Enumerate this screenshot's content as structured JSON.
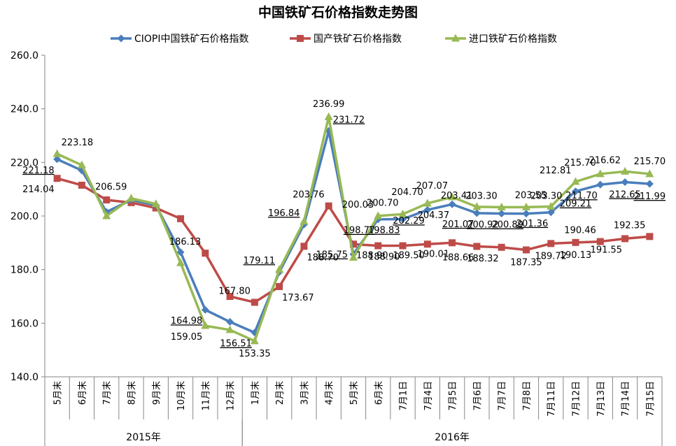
{
  "chart_data": {
    "type": "line",
    "title": "中国铁矿石价格指数走势图",
    "ylim": [
      140,
      260
    ],
    "yticks": [
      "140.0",
      "160.0",
      "180.0",
      "200.0",
      "220.0",
      "240.0",
      "260.0"
    ],
    "grid": false,
    "legend_position": "top",
    "categories": [
      "5月末",
      "6月末",
      "7月末",
      "8月末",
      "9月末",
      "10月末",
      "11月末",
      "12月末",
      "1月末",
      "2月末",
      "3月末",
      "4月末",
      "5月末",
      "6月末",
      "7月1日",
      "7月4日",
      "7月5日",
      "7月6日",
      "7月7日",
      "7月8日",
      "7月11日",
      "7月12日",
      "7月13日",
      "7月14日",
      "7月15日"
    ],
    "groups": [
      {
        "label": "2015年",
        "start": 0,
        "end": 7
      },
      {
        "label": "2016年",
        "start": 8,
        "end": 24
      }
    ],
    "series": [
      {
        "name": "CIOPI中国铁矿石价格指数",
        "color": "#4a7ebb",
        "marker": "diamond",
        "values": [
          221.18,
          217.0,
          201.5,
          206.0,
          204.0,
          186.5,
          164.98,
          160.5,
          156.51,
          179.11,
          196.84,
          231.72,
          185.75,
          198.77,
          198.83,
          202.29,
          204.37,
          201.07,
          200.92,
          200.89,
          201.36,
          209.21,
          211.7,
          212.65,
          211.99
        ]
      },
      {
        "name": "国产铁矿石价格指数",
        "color": "#be4b48",
        "marker": "square",
        "values": [
          214.04,
          211.5,
          206.0,
          205.0,
          203.0,
          199.0,
          186.13,
          170.0,
          167.8,
          173.67,
          188.7,
          203.76,
          189.5,
          188.9,
          188.9,
          189.5,
          190.01,
          188.66,
          188.32,
          187.35,
          189.72,
          190.13,
          190.46,
          191.55,
          192.35
        ]
      },
      {
        "name": "进口铁矿石价格指数",
        "color": "#98b954",
        "marker": "triangle",
        "values": [
          223.18,
          219.0,
          200.0,
          206.59,
          204.5,
          182.5,
          159.05,
          157.5,
          153.35,
          180.0,
          198.0,
          236.99,
          184.5,
          200.03,
          200.7,
          204.7,
          207.07,
          203.41,
          203.3,
          203.3,
          203.55,
          212.81,
          215.7,
          216.62,
          215.7
        ]
      }
    ],
    "data_labels": [
      {
        "series": 2,
        "index": 0,
        "text": "223.18",
        "pos": "above-right"
      },
      {
        "series": 0,
        "index": 0,
        "text": "221.18",
        "pos": "below-left",
        "underline": true
      },
      {
        "series": 1,
        "index": 0,
        "text": "214.04",
        "pos": "below-left"
      },
      {
        "series": 2,
        "index": 3,
        "text": "206.59",
        "pos": "above-left"
      },
      {
        "series": 1,
        "index": 6,
        "text": "186.13",
        "pos": "above-left"
      },
      {
        "series": 0,
        "index": 6,
        "text": "164.98",
        "pos": "below-left",
        "underline": true
      },
      {
        "series": 2,
        "index": 6,
        "text": "159.05",
        "pos": "below-left"
      },
      {
        "series": 1,
        "index": 8,
        "text": "167.80",
        "pos": "above-left"
      },
      {
        "series": 0,
        "index": 8,
        "text": "156.51",
        "pos": "below-left",
        "underline": true
      },
      {
        "series": 2,
        "index": 8,
        "text": "153.35",
        "pos": "below"
      },
      {
        "series": 0,
        "index": 9,
        "text": "179.11",
        "pos": "above-left",
        "underline": true
      },
      {
        "series": 1,
        "index": 9,
        "text": "173.67",
        "pos": "below-right"
      },
      {
        "series": 0,
        "index": 10,
        "text": "196.84",
        "pos": "above-left",
        "underline": true
      },
      {
        "series": 1,
        "index": 10,
        "text": "188.70",
        "pos": "below-right"
      },
      {
        "series": 2,
        "index": 11,
        "text": "236.99",
        "pos": "above"
      },
      {
        "series": 0,
        "index": 11,
        "text": "231.72",
        "pos": "above-right",
        "underline": true
      },
      {
        "series": 1,
        "index": 11,
        "text": "203.76",
        "pos": "above-left"
      },
      {
        "series": 0,
        "index": 12,
        "text": "185.75",
        "pos": "left",
        "underline": true
      },
      {
        "series": 1,
        "index": 12,
        "text": "188.90",
        "pos": "below-right"
      },
      {
        "series": 2,
        "index": 13,
        "text": "200.03",
        "pos": "above-left"
      },
      {
        "series": 0,
        "index": 13,
        "text": "198.77",
        "pos": "below-left",
        "underline": true
      },
      {
        "series": 2,
        "index": 14,
        "text": "200.70",
        "pos": "above-left"
      },
      {
        "series": 0,
        "index": 14,
        "text": "198.83",
        "pos": "below-left",
        "underline": true
      },
      {
        "series": 1,
        "index": 14,
        "text": "188.90",
        "pos": "below-left"
      },
      {
        "series": 2,
        "index": 15,
        "text": "204.70",
        "pos": "above-left"
      },
      {
        "series": 0,
        "index": 15,
        "text": "202.29",
        "pos": "below-left",
        "underline": true
      },
      {
        "series": 1,
        "index": 15,
        "text": "189.50",
        "pos": "below-left"
      },
      {
        "series": 2,
        "index": 16,
        "text": "207.07",
        "pos": "above-left"
      },
      {
        "series": 0,
        "index": 16,
        "text": "204.37",
        "pos": "below-left"
      },
      {
        "series": 1,
        "index": 16,
        "text": "190.01",
        "pos": "below-left"
      },
      {
        "series": 2,
        "index": 17,
        "text": "203.41",
        "pos": "above-left"
      },
      {
        "series": 0,
        "index": 17,
        "text": "201.07",
        "pos": "below-left",
        "underline": true
      },
      {
        "series": 1,
        "index": 17,
        "text": "188.66",
        "pos": "below-left"
      },
      {
        "series": 2,
        "index": 18,
        "text": "203.30",
        "pos": "above-left"
      },
      {
        "series": 0,
        "index": 18,
        "text": "200.92",
        "pos": "below-left",
        "underline": true
      },
      {
        "series": 1,
        "index": 18,
        "text": "188.32",
        "pos": "below-left"
      },
      {
        "series": 2,
        "index": 19,
        "text": "203.30",
        "pos": "above-right"
      },
      {
        "series": 0,
        "index": 19,
        "text": "200.89",
        "pos": "below-left",
        "underline": true
      },
      {
        "series": 1,
        "index": 19,
        "text": "187.35",
        "pos": "below"
      },
      {
        "series": 2,
        "index": 20,
        "text": "203.55",
        "pos": "above-left"
      },
      {
        "series": 0,
        "index": 20,
        "text": "201.36",
        "pos": "below-left",
        "underline": true
      },
      {
        "series": 1,
        "index": 20,
        "text": "189.72",
        "pos": "below"
      },
      {
        "series": 2,
        "index": 21,
        "text": "212.81",
        "pos": "above-left"
      },
      {
        "series": 0,
        "index": 21,
        "text": "209.21",
        "pos": "below",
        "underline": true
      },
      {
        "series": 1,
        "index": 21,
        "text": "190.13",
        "pos": "below"
      },
      {
        "series": 2,
        "index": 22,
        "text": "215.70",
        "pos": "above-left"
      },
      {
        "series": 0,
        "index": 22,
        "text": "211.70",
        "pos": "below-left",
        "underline": true
      },
      {
        "series": 1,
        "index": 22,
        "text": "190.46",
        "pos": "above-left"
      },
      {
        "series": 2,
        "index": 23,
        "text": "216.62",
        "pos": "above-left"
      },
      {
        "series": 0,
        "index": 23,
        "text": "212.65",
        "pos": "below",
        "underline": true
      },
      {
        "series": 1,
        "index": 23,
        "text": "191.55",
        "pos": "below-left"
      },
      {
        "series": 2,
        "index": 24,
        "text": "215.70",
        "pos": "above"
      },
      {
        "series": 0,
        "index": 24,
        "text": "211.99",
        "pos": "below",
        "underline": true
      },
      {
        "series": 1,
        "index": 24,
        "text": "192.35",
        "pos": "above-left"
      }
    ]
  }
}
